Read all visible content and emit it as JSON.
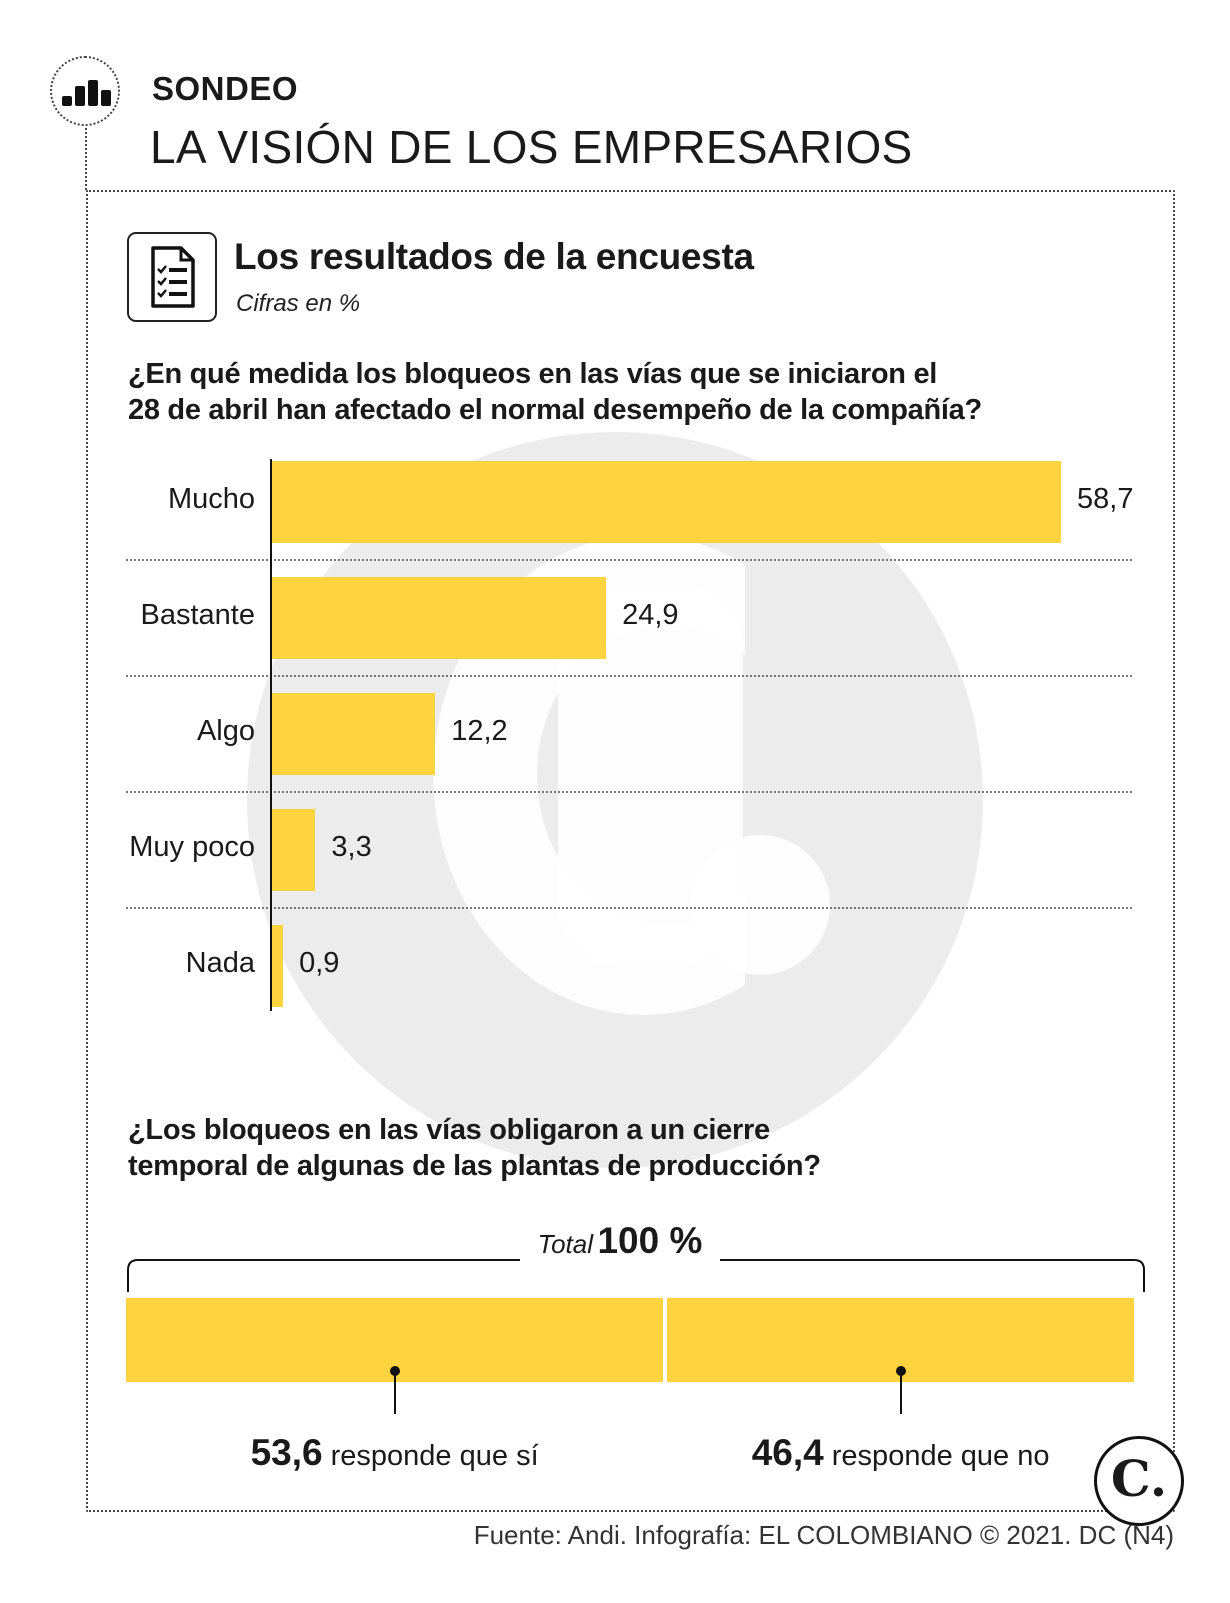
{
  "header": {
    "kicker": "SONDEO",
    "headline": "LA VISIÓN DE LOS EMPRESARIOS",
    "badge_icon": "bar-chart-icon"
  },
  "section": {
    "title": "Los resultados de la encuesta",
    "subtitle": "Cifras en %",
    "icon": "document-checklist-icon"
  },
  "chart_data": [
    {
      "type": "bar",
      "orientation": "horizontal",
      "title": "¿En qué medida los bloqueos en las vías que se iniciaron el 28 de abril han afectado el normal desempeño de la compañía?",
      "title_lines": [
        "¿En qué medida los bloqueos en las vías que se iniciaron el",
        "28 de abril han afectado el normal desempeño de la compañía?"
      ],
      "categories": [
        "Mucho",
        "Bastante",
        "Algo",
        "Muy poco",
        "Nada"
      ],
      "values": [
        58.7,
        24.9,
        12.2,
        3.3,
        0.9
      ],
      "value_labels": [
        "58,7",
        "24,9",
        "12,2",
        "3,3",
        "0,9"
      ],
      "xlim": [
        0,
        58.7
      ],
      "grid": false,
      "bar_color": "#fdd43f"
    },
    {
      "type": "bar",
      "orientation": "stacked-horizontal",
      "title": "¿Los bloqueos en las vías obligaron a un cierre temporal de algunas de las plantas de producción?",
      "title_lines": [
        "¿Los bloqueos en las vías obligaron a un cierre",
        "temporal de algunas de las plantas de producción?"
      ],
      "total_label": "Total",
      "total_value": "100 %",
      "segments": [
        {
          "value": 53.6,
          "value_label": "53,6",
          "label": "responde que sí"
        },
        {
          "value": 46.4,
          "value_label": "46,4",
          "label": "responde que no"
        }
      ],
      "bar_color": "#fdd43f"
    }
  ],
  "footer": {
    "source": "Fuente: Andi. Infografía: EL COLOMBIANO © 2021. DC (N4)",
    "logo_letter": "C."
  }
}
